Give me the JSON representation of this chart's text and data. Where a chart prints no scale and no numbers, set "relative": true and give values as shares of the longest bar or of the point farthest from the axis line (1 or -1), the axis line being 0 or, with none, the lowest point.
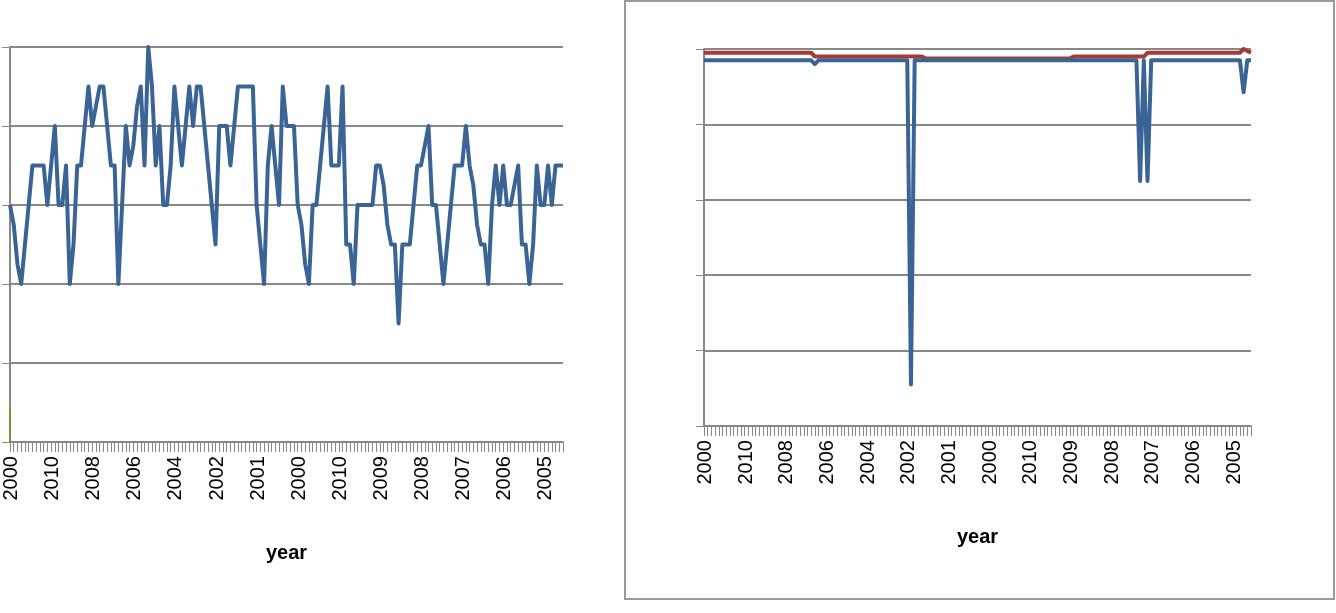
{
  "chart_data": [
    {
      "type": "line",
      "relative": true,
      "xlabel": "year",
      "grid": "y",
      "tick_labels": "x",
      "marker": "none",
      "categories": [
        "2000",
        null,
        null,
        null,
        null,
        null,
        null,
        null,
        null,
        null,
        null,
        "2010",
        null,
        null,
        null,
        null,
        null,
        null,
        null,
        null,
        null,
        null,
        "2008",
        null,
        null,
        null,
        null,
        null,
        null,
        null,
        null,
        null,
        null,
        "2006",
        null,
        null,
        null,
        null,
        null,
        null,
        null,
        null,
        null,
        null,
        "2004",
        null,
        null,
        null,
        null,
        null,
        null,
        null,
        null,
        null,
        null,
        "2002",
        null,
        null,
        null,
        null,
        null,
        null,
        null,
        null,
        null,
        null,
        "2001",
        null,
        null,
        null,
        null,
        null,
        null,
        null,
        null,
        null,
        null,
        "2000",
        null,
        null,
        null,
        null,
        null,
        null,
        null,
        null,
        null,
        null,
        "2010",
        null,
        null,
        null,
        null,
        null,
        null,
        null,
        null,
        null,
        null,
        "2009",
        null,
        null,
        null,
        null,
        null,
        null,
        null,
        null,
        null,
        null,
        "2008",
        null,
        null,
        null,
        null,
        null,
        null,
        null,
        null,
        null,
        null,
        "2007",
        null,
        null,
        null,
        null,
        null,
        null,
        null,
        null,
        null,
        null,
        "2006",
        null,
        null,
        null,
        null,
        null,
        null,
        null,
        null,
        null,
        null,
        "2005",
        null,
        null,
        null,
        null,
        null
      ],
      "series": [
        {
          "color": "#3a6496",
          "values": [
            0.6,
            0.55,
            0.45,
            0.4,
            0.5,
            0.6,
            0.7,
            0.7,
            0.7,
            0.7,
            0.6,
            0.7,
            0.8,
            0.6,
            0.6,
            0.7,
            0.4,
            0.5,
            0.7,
            0.7,
            0.8,
            0.9,
            0.8,
            0.85,
            0.9,
            0.9,
            0.8,
            0.7,
            0.7,
            0.4,
            0.6,
            0.8,
            0.7,
            0.75,
            0.85,
            0.9,
            0.7,
            1.0,
            0.9,
            0.7,
            0.8,
            0.6,
            0.6,
            0.7,
            0.9,
            0.8,
            0.7,
            0.8,
            0.9,
            0.8,
            0.9,
            0.9,
            0.8,
            0.7,
            0.6,
            0.5,
            0.8,
            0.8,
            0.8,
            0.7,
            0.8,
            0.9,
            0.9,
            0.9,
            0.9,
            0.9,
            0.6,
            0.5,
            0.4,
            0.7,
            0.8,
            0.7,
            0.6,
            0.9,
            0.8,
            0.8,
            0.8,
            0.6,
            0.55,
            0.45,
            0.4,
            0.6,
            0.6,
            0.7,
            0.8,
            0.9,
            0.7,
            0.7,
            0.7,
            0.9,
            0.5,
            0.5,
            0.4,
            0.6,
            0.6,
            0.6,
            0.6,
            0.6,
            0.7,
            0.7,
            0.65,
            0.55,
            0.5,
            0.5,
            0.3,
            0.5,
            0.5,
            0.5,
            0.6,
            0.7,
            0.7,
            0.75,
            0.8,
            0.6,
            0.6,
            0.5,
            0.4,
            0.5,
            0.6,
            0.7,
            0.7,
            0.7,
            0.8,
            0.7,
            0.65,
            0.55,
            0.5,
            0.5,
            0.4,
            0.6,
            0.7,
            0.6,
            0.7,
            0.6,
            0.6,
            0.65,
            0.7,
            0.5,
            0.5,
            0.4,
            0.5,
            0.7,
            0.6,
            0.6,
            0.7,
            0.6,
            0.7,
            0.7,
            0.7
          ]
        },
        {
          "type": "bar",
          "color": "#77933c",
          "values": [
            0.09,
            null,
            null,
            null,
            null,
            null,
            null,
            null,
            null,
            null,
            null,
            null,
            null,
            null,
            null,
            null,
            null,
            null,
            null,
            null,
            null,
            null,
            null,
            null,
            null,
            null,
            null,
            null,
            null,
            null,
            null,
            null,
            null,
            null,
            null,
            null,
            null,
            null,
            null,
            null,
            null,
            null,
            null,
            null,
            null,
            null,
            null,
            null,
            null,
            null,
            null,
            null,
            null,
            null,
            null,
            null,
            null,
            null,
            null,
            null,
            null,
            null,
            null,
            null,
            null,
            null,
            null,
            null,
            null,
            null,
            null,
            null,
            null,
            null,
            null,
            null,
            null,
            null,
            null,
            null,
            null,
            null,
            null,
            null,
            null,
            null,
            null,
            null,
            null,
            null,
            null,
            null,
            null,
            null,
            null,
            null,
            null,
            null,
            null,
            null,
            null,
            null,
            null,
            null,
            null,
            null,
            null,
            null,
            null,
            null,
            null,
            null,
            null,
            null,
            null,
            null,
            null,
            null,
            null,
            null,
            null,
            null,
            null,
            null,
            null,
            null,
            null,
            null,
            null,
            null,
            null,
            null,
            null,
            null,
            null,
            null,
            null,
            null,
            null,
            null,
            null,
            null,
            null,
            null,
            null,
            null,
            null,
            null,
            null
          ]
        }
      ]
    },
    {
      "type": "line",
      "relative": true,
      "xlabel": "year",
      "grid": "y",
      "tick_labels": "x",
      "marker": "none",
      "categories": [
        "2000",
        null,
        null,
        null,
        null,
        null,
        null,
        null,
        null,
        null,
        null,
        "2010",
        null,
        null,
        null,
        null,
        null,
        null,
        null,
        null,
        null,
        null,
        "2008",
        null,
        null,
        null,
        null,
        null,
        null,
        null,
        null,
        null,
        null,
        "2006",
        null,
        null,
        null,
        null,
        null,
        null,
        null,
        null,
        null,
        null,
        "2004",
        null,
        null,
        null,
        null,
        null,
        null,
        null,
        null,
        null,
        null,
        "2002",
        null,
        null,
        null,
        null,
        null,
        null,
        null,
        null,
        null,
        null,
        "2001",
        null,
        null,
        null,
        null,
        null,
        null,
        null,
        null,
        null,
        null,
        "2000",
        null,
        null,
        null,
        null,
        null,
        null,
        null,
        null,
        null,
        null,
        "2010",
        null,
        null,
        null,
        null,
        null,
        null,
        null,
        null,
        null,
        null,
        "2009",
        null,
        null,
        null,
        null,
        null,
        null,
        null,
        null,
        null,
        null,
        "2008",
        null,
        null,
        null,
        null,
        null,
        null,
        null,
        null,
        null,
        null,
        "2007",
        null,
        null,
        null,
        null,
        null,
        null,
        null,
        null,
        null,
        null,
        "2006",
        null,
        null,
        null,
        null,
        null,
        null,
        null,
        null,
        null,
        null,
        "2005",
        null,
        null,
        null,
        null,
        null
      ],
      "series": [
        {
          "color": "#a33b36",
          "values": [
            0.99,
            0.99,
            0.99,
            0.99,
            0.99,
            0.99,
            0.99,
            0.99,
            0.99,
            0.99,
            0.99,
            0.99,
            0.99,
            0.99,
            0.99,
            0.99,
            0.99,
            0.99,
            0.99,
            0.99,
            0.99,
            0.99,
            0.99,
            0.99,
            0.99,
            0.99,
            0.99,
            0.99,
            0.99,
            0.99,
            0.98,
            0.98,
            0.98,
            0.98,
            0.98,
            0.98,
            0.98,
            0.98,
            0.98,
            0.98,
            0.98,
            0.98,
            0.98,
            0.98,
            0.98,
            0.98,
            0.98,
            0.98,
            0.98,
            0.98,
            0.98,
            0.98,
            0.98,
            0.98,
            0.98,
            0.98,
            0.98,
            0.98,
            0.98,
            0.98,
            0.975,
            0.975,
            0.975,
            0.975,
            0.975,
            0.975,
            0.975,
            0.975,
            0.975,
            0.975,
            0.975,
            0.975,
            0.975,
            0.975,
            0.975,
            0.975,
            0.975,
            0.975,
            0.975,
            0.975,
            0.975,
            0.975,
            0.975,
            0.975,
            0.975,
            0.975,
            0.975,
            0.975,
            0.975,
            0.975,
            0.975,
            0.975,
            0.975,
            0.975,
            0.975,
            0.975,
            0.975,
            0.975,
            0.975,
            0.975,
            0.98,
            0.98,
            0.98,
            0.98,
            0.98,
            0.98,
            0.98,
            0.98,
            0.98,
            0.98,
            0.98,
            0.98,
            0.98,
            0.98,
            0.98,
            0.98,
            0.98,
            0.98,
            0.98,
            0.98,
            0.99,
            0.99,
            0.99,
            0.99,
            0.99,
            0.99,
            0.99,
            0.99,
            0.99,
            0.99,
            0.99,
            0.99,
            0.99,
            0.99,
            0.99,
            0.99,
            0.99,
            0.99,
            0.99,
            0.99,
            0.99,
            0.99,
            0.99,
            0.99,
            0.99,
            0.99,
            1.0,
            0.995,
            0.99
          ]
        },
        {
          "color": "#3a6496",
          "values": [
            0.97,
            0.97,
            0.97,
            0.97,
            0.97,
            0.97,
            0.97,
            0.97,
            0.97,
            0.97,
            0.97,
            0.97,
            0.97,
            0.97,
            0.97,
            0.97,
            0.97,
            0.97,
            0.97,
            0.97,
            0.97,
            0.97,
            0.97,
            0.97,
            0.97,
            0.97,
            0.97,
            0.97,
            0.97,
            0.97,
            0.96,
            0.97,
            0.97,
            0.97,
            0.97,
            0.97,
            0.97,
            0.97,
            0.97,
            0.97,
            0.97,
            0.97,
            0.97,
            0.97,
            0.97,
            0.97,
            0.97,
            0.97,
            0.97,
            0.97,
            0.97,
            0.97,
            0.97,
            0.97,
            0.97,
            0.97,
            0.11,
            0.97,
            0.97,
            0.97,
            0.97,
            0.97,
            0.97,
            0.97,
            0.97,
            0.97,
            0.97,
            0.97,
            0.97,
            0.97,
            0.97,
            0.97,
            0.97,
            0.97,
            0.97,
            0.97,
            0.97,
            0.97,
            0.97,
            0.97,
            0.97,
            0.97,
            0.97,
            0.97,
            0.97,
            0.97,
            0.97,
            0.97,
            0.97,
            0.97,
            0.97,
            0.97,
            0.97,
            0.97,
            0.97,
            0.97,
            0.97,
            0.97,
            0.97,
            0.97,
            0.97,
            0.97,
            0.97,
            0.97,
            0.97,
            0.97,
            0.97,
            0.97,
            0.97,
            0.97,
            0.97,
            0.97,
            0.97,
            0.97,
            0.97,
            0.97,
            0.97,
            0.97,
            0.65,
            0.97,
            0.65,
            0.97,
            0.97,
            0.97,
            0.97,
            0.97,
            0.97,
            0.97,
            0.97,
            0.97,
            0.97,
            0.97,
            0.97,
            0.97,
            0.97,
            0.97,
            0.97,
            0.97,
            0.97,
            0.97,
            0.97,
            0.97,
            0.97,
            0.97,
            0.97,
            0.97,
            0.885,
            0.97,
            0.97
          ]
        }
      ]
    }
  ]
}
